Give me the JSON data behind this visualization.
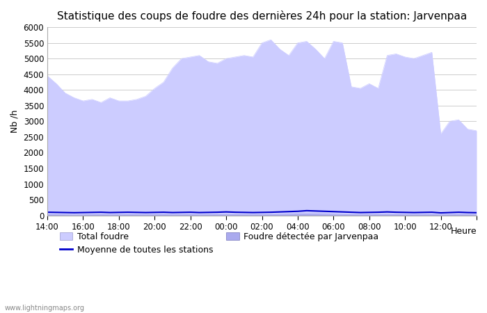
{
  "title": "Statistique des coups de foudre des dernières 24h pour la station: Jarvenpaa",
  "ylabel": "Nb /h",
  "xlabel": "Heure",
  "watermark": "www.lightningmaps.org",
  "ylim": [
    0,
    6000
  ],
  "yticks": [
    0,
    500,
    1000,
    1500,
    2000,
    2500,
    3000,
    3500,
    4000,
    4500,
    5000,
    5500,
    6000
  ],
  "xtick_positions": [
    0,
    4,
    8,
    12,
    16,
    20,
    24,
    28,
    32,
    36,
    40,
    44,
    48
  ],
  "xtick_labels": [
    "14:00",
    "16:00",
    "18:00",
    "20:00",
    "22:00",
    "00:00",
    "02:00",
    "04:00",
    "06:00",
    "08:00",
    "10:00",
    "12:00",
    ""
  ],
  "x_values": [
    0,
    1,
    2,
    3,
    4,
    5,
    6,
    7,
    8,
    9,
    10,
    11,
    12,
    13,
    14,
    15,
    16,
    17,
    18,
    19,
    20,
    21,
    22,
    23,
    24,
    25,
    26,
    27,
    28,
    29,
    30,
    31,
    32,
    33,
    34,
    35,
    36,
    37,
    38,
    39,
    40,
    41,
    42,
    43,
    44,
    45,
    46,
    47,
    48
  ],
  "total_foudre": [
    4450,
    4200,
    3900,
    3750,
    3650,
    3700,
    3600,
    3750,
    3650,
    3650,
    3700,
    3800,
    4050,
    4250,
    4700,
    5000,
    5050,
    5100,
    4900,
    4850,
    5000,
    5050,
    5100,
    5050,
    5500,
    5600,
    5300,
    5100,
    5500,
    5550,
    5300,
    5000,
    5550,
    5500,
    4100,
    4050,
    4200,
    4050,
    5100,
    5150,
    5050,
    5000,
    5100,
    5200,
    2600,
    3000,
    3050,
    2750,
    2700
  ],
  "detected_jarvenpaa": [
    30,
    25,
    20,
    15,
    20,
    25,
    30,
    20,
    25,
    30,
    25,
    20,
    25,
    30,
    20,
    25,
    30,
    20,
    25,
    30,
    35,
    30,
    25,
    20,
    25,
    30,
    35,
    40,
    45,
    50,
    45,
    40,
    35,
    30,
    25,
    20,
    25,
    30,
    35,
    30,
    25,
    20,
    25,
    30,
    20,
    25,
    30,
    25,
    20
  ],
  "moyenne_stations": [
    100,
    95,
    90,
    85,
    90,
    95,
    100,
    90,
    95,
    100,
    95,
    90,
    95,
    100,
    90,
    95,
    100,
    90,
    95,
    100,
    110,
    100,
    95,
    90,
    95,
    100,
    110,
    120,
    130,
    150,
    140,
    130,
    120,
    110,
    100,
    90,
    95,
    100,
    110,
    100,
    95,
    90,
    95,
    100,
    80,
    90,
    100,
    90,
    85
  ],
  "color_total_foudre_fill": "#ccccff",
  "color_detected_fill": "#aaaaee",
  "color_moyenne_line": "#0000cc",
  "grid_color": "#cccccc",
  "bg_color": "#ffffff",
  "title_fontsize": 11,
  "tick_fontsize": 8.5,
  "label_fontsize": 9
}
